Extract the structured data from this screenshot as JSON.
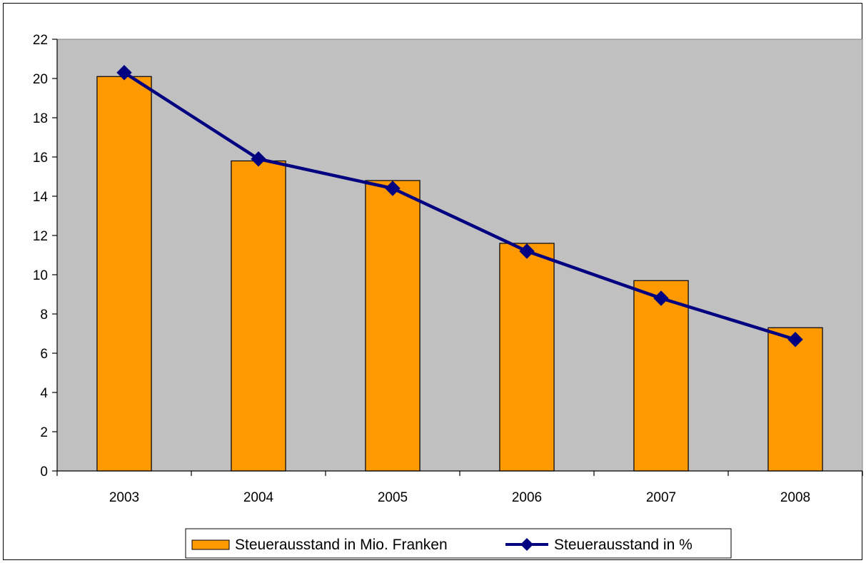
{
  "chart_data": {
    "type": "bar",
    "categories": [
      "2003",
      "2004",
      "2005",
      "2006",
      "2007",
      "2008"
    ],
    "series": [
      {
        "name": "Steuerausstand in Mio. Franken",
        "type": "bar",
        "values": [
          20.1,
          15.8,
          14.8,
          11.6,
          9.7,
          7.3
        ],
        "color": "#FF9900"
      },
      {
        "name": "Steuerausstand in %",
        "type": "line",
        "values": [
          20.3,
          15.9,
          14.4,
          11.2,
          8.8,
          6.7
        ],
        "color": "#000080",
        "marker": "diamond"
      }
    ],
    "ylim": [
      0,
      22
    ],
    "yticks": [
      0,
      2,
      4,
      6,
      8,
      10,
      12,
      14,
      16,
      18,
      20,
      22
    ],
    "title": "",
    "xlabel": "",
    "ylabel": "",
    "grid": false,
    "plot_background": "#C0C0C0",
    "legend_position": "bottom"
  }
}
